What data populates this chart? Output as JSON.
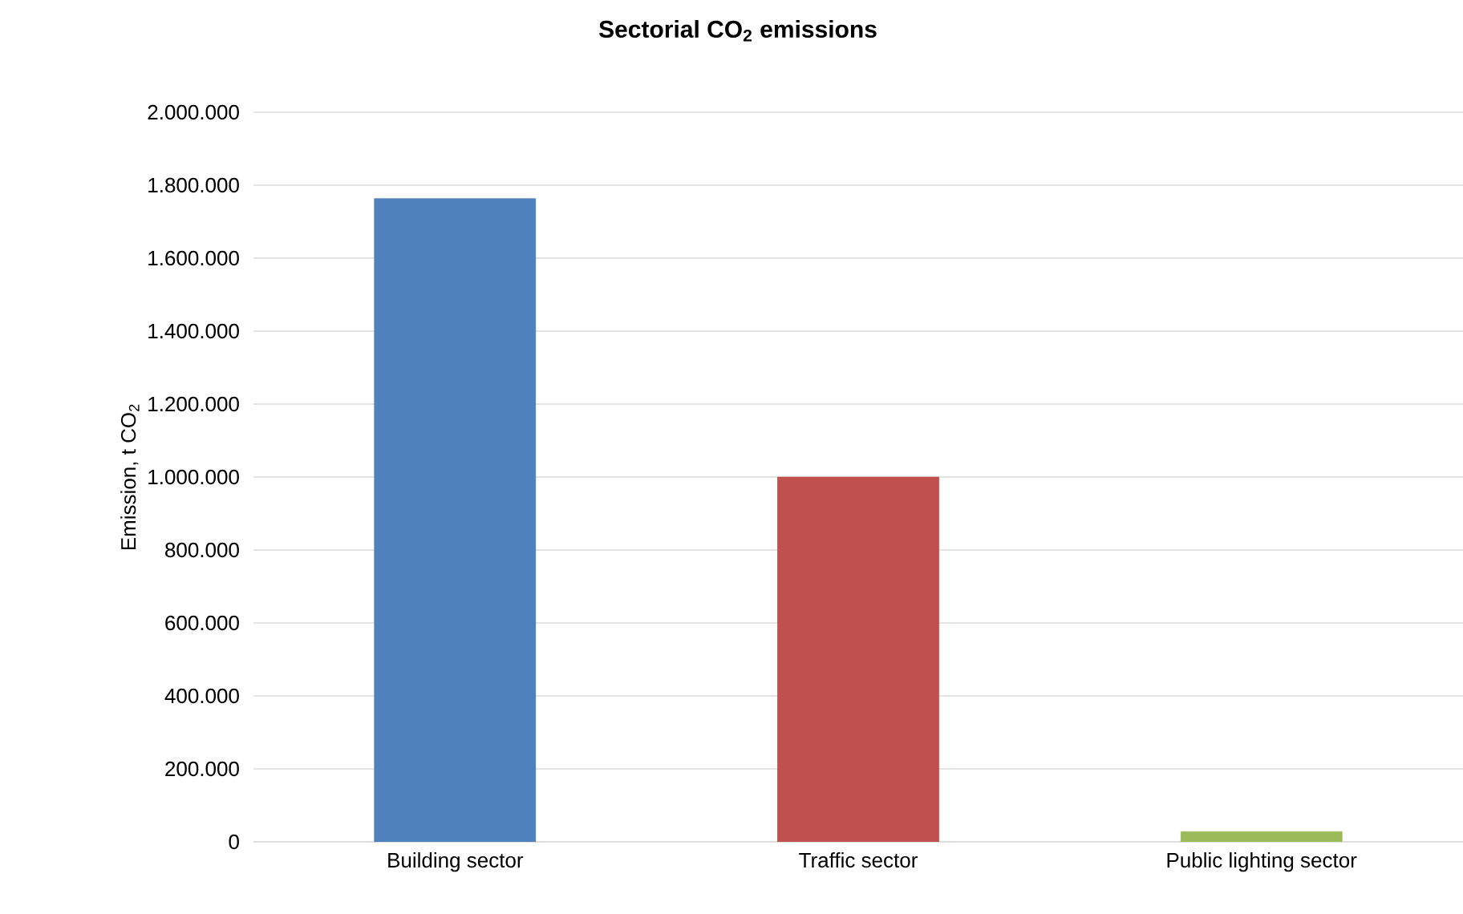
{
  "chart_data": {
    "type": "bar",
    "title": "Sectorial CO$_{2}$ emissions",
    "ylabel": "Emission, t CO$_{2}$",
    "categories": [
      "Building sector",
      "Traffic sector",
      "Public lighting sector"
    ],
    "values": [
      1763000,
      1000000,
      28000
    ],
    "colors": [
      "#4f81bd",
      "#c0504d",
      "#9bbb59"
    ],
    "ylim": [
      0,
      2000000
    ],
    "yticks": [
      0,
      {
        "value": 200000,
        "label": "200.000"
      },
      {
        "value": 400000,
        "label": "400.000"
      },
      {
        "value": 600000,
        "label": "600.000"
      },
      {
        "value": 800000,
        "label": "800.000"
      },
      {
        "value": 1000000,
        "label": "1.000.000"
      },
      {
        "value": 1200000,
        "label": "1.200.000"
      },
      {
        "value": 1400000,
        "label": "1.400.000"
      },
      {
        "value": 1600000,
        "label": "1.600.000"
      },
      {
        "value": 1800000,
        "label": "1.800.000"
      },
      {
        "value": 2000000,
        "label": "2.000.000"
      }
    ],
    "grid": "y"
  }
}
